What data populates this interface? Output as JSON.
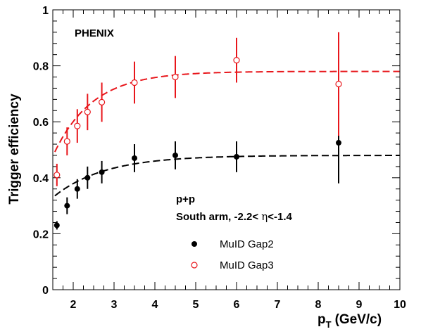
{
  "chart_data": {
    "type": "scatter",
    "title": "",
    "xlabel": "p",
    "xlabel_sub": "T",
    "xlabel_units": "(GeV/c)",
    "ylabel": "Trigger efficiency",
    "xlim": [
      1.5,
      10
    ],
    "ylim": [
      0,
      1
    ],
    "x_ticks": [
      "2",
      "3",
      "4",
      "5",
      "6",
      "7",
      "8",
      "9",
      "10"
    ],
    "y_ticks": [
      "0",
      "0.2",
      "0.4",
      "0.6",
      "0.8",
      "1"
    ],
    "annotations": {
      "experiment": "PHENIX",
      "system": "p+p",
      "arm_prefix": "South arm,  -2.2< ",
      "eta_symbol": "η",
      "arm_suffix": "<-1.4"
    },
    "legend_position": "center-right",
    "series": [
      {
        "name": "MuID Gap2",
        "color": "#000000",
        "marker": "filled-circle",
        "x": [
          1.6,
          1.85,
          2.1,
          2.35,
          2.7,
          3.5,
          4.5,
          6.0,
          8.5
        ],
        "y": [
          0.23,
          0.3,
          0.36,
          0.4,
          0.42,
          0.47,
          0.48,
          0.475,
          0.525
        ],
        "err": [
          0.015,
          0.03,
          0.035,
          0.04,
          0.04,
          0.05,
          0.05,
          0.055,
          0.145
        ],
        "fit_plateau": 0.48
      },
      {
        "name": "MuID Gap3",
        "color": "#e8161b",
        "marker": "open-circle",
        "x": [
          1.6,
          1.85,
          2.1,
          2.35,
          2.7,
          3.5,
          4.5,
          6.0,
          8.5
        ],
        "y": [
          0.41,
          0.53,
          0.585,
          0.635,
          0.67,
          0.74,
          0.76,
          0.82,
          0.735
        ],
        "err": [
          0.04,
          0.05,
          0.06,
          0.065,
          0.07,
          0.075,
          0.075,
          0.08,
          0.185
        ],
        "fit_plateau": 0.78
      }
    ]
  }
}
